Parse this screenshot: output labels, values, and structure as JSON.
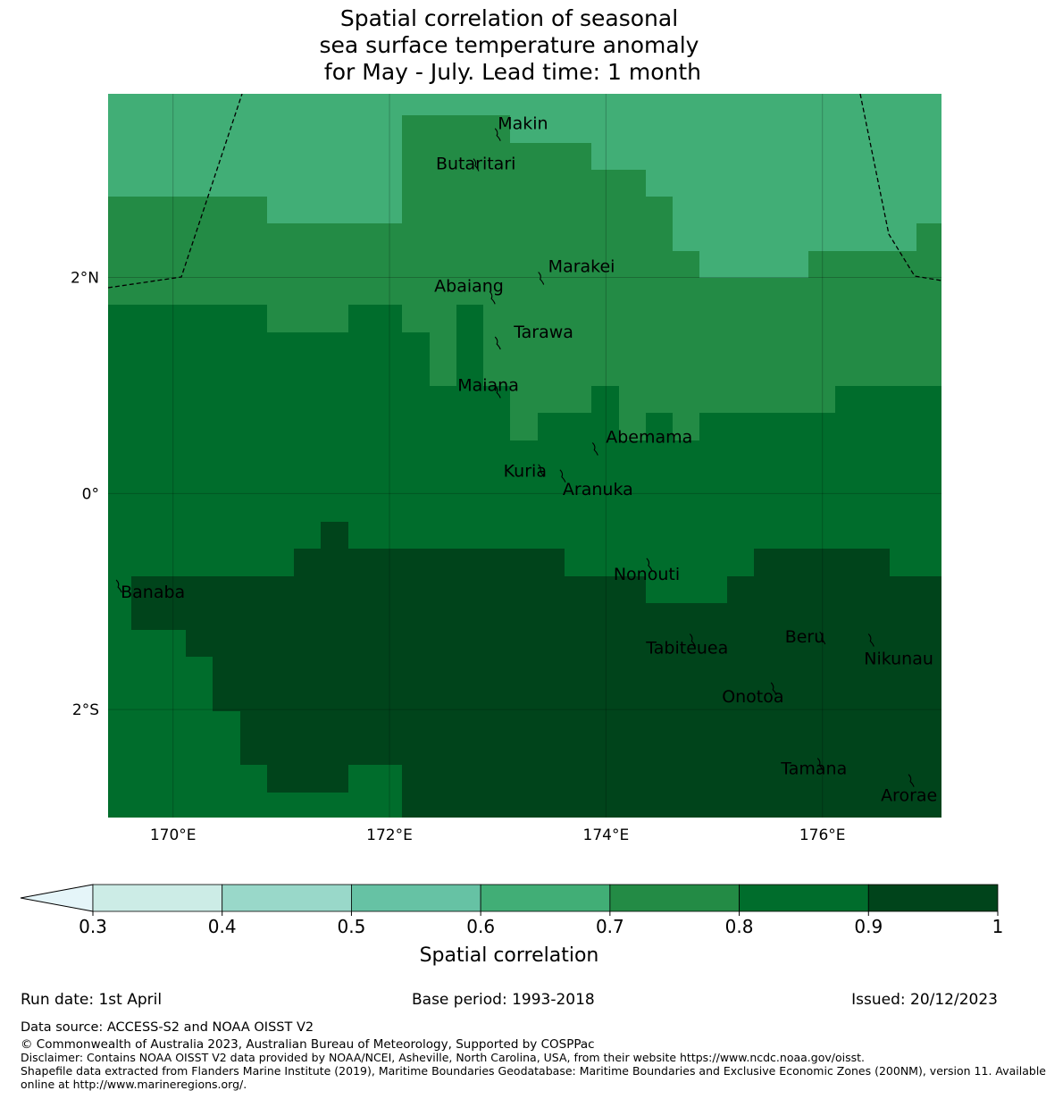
{
  "title": {
    "line1": "Spatial correlation of seasonal",
    "line2": "sea surface temperature anomaly",
    "line3": " for May - July. Lead time: 1 month"
  },
  "map": {
    "lat_labels": [
      {
        "lat": 2,
        "label": "2°N"
      },
      {
        "lat": 0,
        "label": "0°"
      },
      {
        "lat": -2,
        "label": "2°S"
      }
    ],
    "lon_labels": [
      {
        "lon": 170,
        "label": "170°E"
      },
      {
        "lon": 172,
        "label": "172°E"
      },
      {
        "lon": 174,
        "label": "174°E"
      },
      {
        "lon": 176,
        "label": "176°E"
      }
    ],
    "lon_range": [
      169.4,
      177.1
    ],
    "lat_range": [
      -3.0,
      3.7
    ],
    "islands": [
      {
        "name": "Makin",
        "lon": 173.0,
        "lat": 3.33
      },
      {
        "name": "Butaritari",
        "lon": 172.8,
        "lat": 3.05
      },
      {
        "name": "Marakei",
        "lon": 173.4,
        "lat": 2.0
      },
      {
        "name": "Abaiang",
        "lon": 172.95,
        "lat": 1.82
      },
      {
        "name": "Tarawa",
        "lon": 173.0,
        "lat": 1.4
      },
      {
        "name": "Maiana",
        "lon": 173.0,
        "lat": 0.95
      },
      {
        "name": "Abemama",
        "lon": 173.9,
        "lat": 0.42
      },
      {
        "name": "Kuria",
        "lon": 173.4,
        "lat": 0.22
      },
      {
        "name": "Aranuka",
        "lon": 173.6,
        "lat": 0.17
      },
      {
        "name": "Nonouti",
        "lon": 174.4,
        "lat": -0.65
      },
      {
        "name": "Banaba",
        "lon": 169.5,
        "lat": -0.85
      },
      {
        "name": "Tabiteuea",
        "lon": 174.8,
        "lat": -1.35
      },
      {
        "name": "Beru",
        "lon": 176.0,
        "lat": -1.33
      },
      {
        "name": "Nikunau",
        "lon": 176.45,
        "lat": -1.35
      },
      {
        "name": "Onotoa",
        "lon": 175.55,
        "lat": -1.8
      },
      {
        "name": "Tamana",
        "lon": 175.98,
        "lat": -2.5
      },
      {
        "name": "Arorae",
        "lon": 176.82,
        "lat": -2.65
      }
    ]
  },
  "colorbar": {
    "label": "Spatial correlation",
    "ticks": [
      "0.3",
      "0.4",
      "0.5",
      "0.6",
      "0.7",
      "0.8",
      "0.9",
      "1"
    ],
    "colors": [
      "#ccece6",
      "#99d8c9",
      "#66c2a4",
      "#41ae76",
      "#238b45",
      "#006d2c",
      "#00441b"
    ],
    "under_color": "#e5f5f9"
  },
  "chart_data": {
    "type": "heatmap",
    "title": "Spatial correlation of seasonal sea surface temperature anomaly for May - July. Lead time: 1 month",
    "colorbar_label": "Spatial correlation",
    "levels": [
      0.3,
      0.4,
      0.5,
      0.6,
      0.7,
      0.8,
      0.9,
      1.0
    ],
    "regions": [
      {
        "area": "north (above ~2.5°N)",
        "range": "0.6-0.7"
      },
      {
        "area": "central north (~1-2.5°N)",
        "range": "0.7-0.8"
      },
      {
        "area": "equatorial band (~0.5°S-1°N)",
        "range": "0.8-0.9"
      },
      {
        "area": "south (below ~0.5°S)",
        "range": "0.9-1"
      }
    ]
  },
  "footer": {
    "run_date": "Run date: 1st April",
    "base_period": "Base period: 1993-2018",
    "issued": "Issued: 20/12/2023",
    "data_source": "Data source: ACCESS-S2 and NOAA OISST V2",
    "copyright": "© Commonwealth of Australia 2023, Australian Bureau of Meteorology, Supported by COSPPac",
    "disclaimer": "Disclaimer: Contains NOAA OISST V2 data provided by NOAA/NCEI, Asheville, North Carolina, USA, from their website https://www.ncdc.noaa.gov/oisst.",
    "shapefile1": "Shapefile data extracted from Flanders Marine Institute (2019), Maritime Boundaries Geodatabase: Maritime Boundaries and Exclusive Economic Zones (200NM), version 11. Available",
    "shapefile2": "online at http://www.marineregions.org/."
  }
}
